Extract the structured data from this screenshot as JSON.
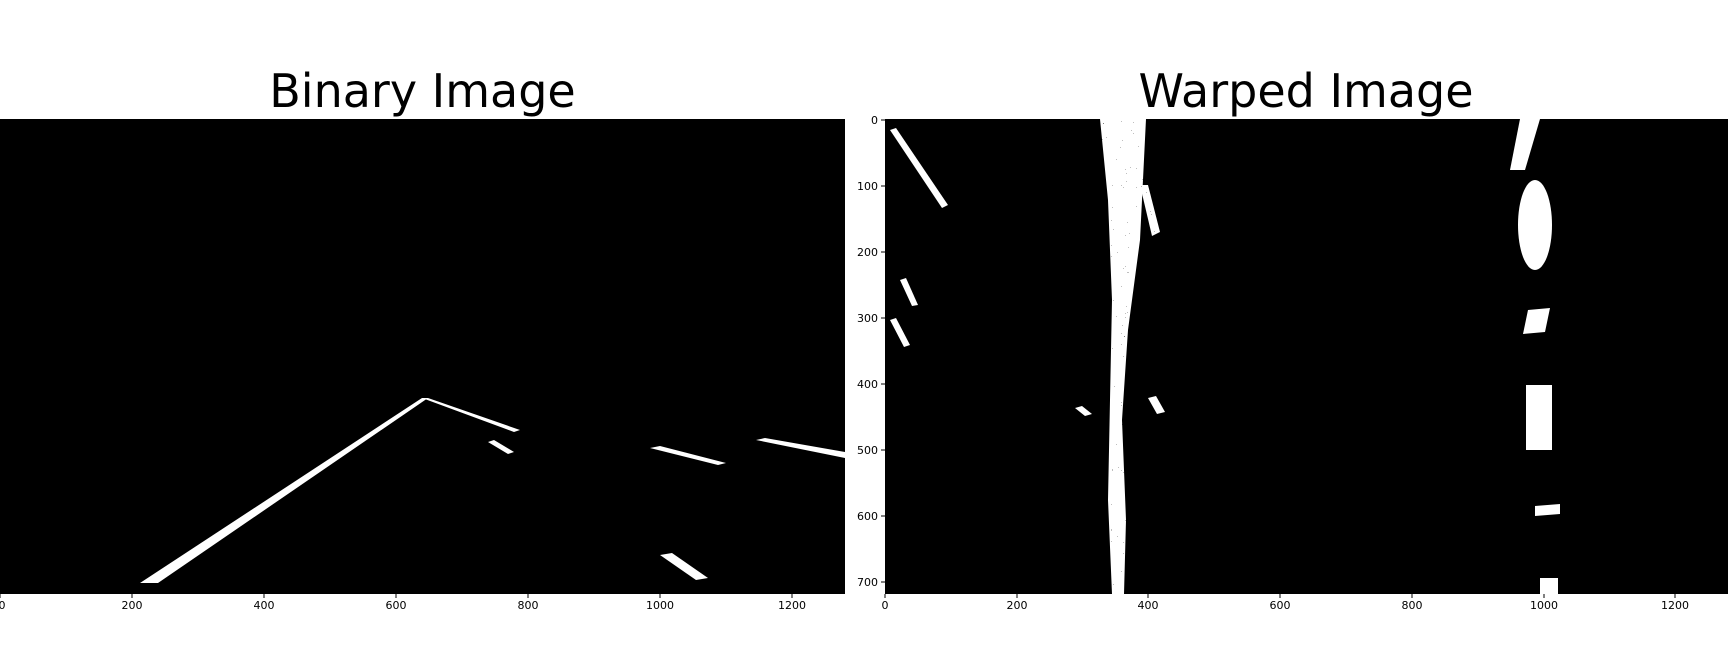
{
  "panels": {
    "left": {
      "title": "Binary Image",
      "x_ticks": [
        "0",
        "200",
        "400",
        "600",
        "800",
        "1000",
        "1200"
      ]
    },
    "right": {
      "title": "Warped Image",
      "x_ticks": [
        "0",
        "200",
        "400",
        "600",
        "800",
        "1000",
        "1200"
      ],
      "y_ticks": [
        "0",
        "100",
        "200",
        "300",
        "400",
        "500",
        "600",
        "700"
      ]
    }
  },
  "image_extent": {
    "width": 1280,
    "height": 720
  },
  "colors": {
    "background": "#000000",
    "foreground": "#ffffff",
    "axis": "#000000"
  }
}
